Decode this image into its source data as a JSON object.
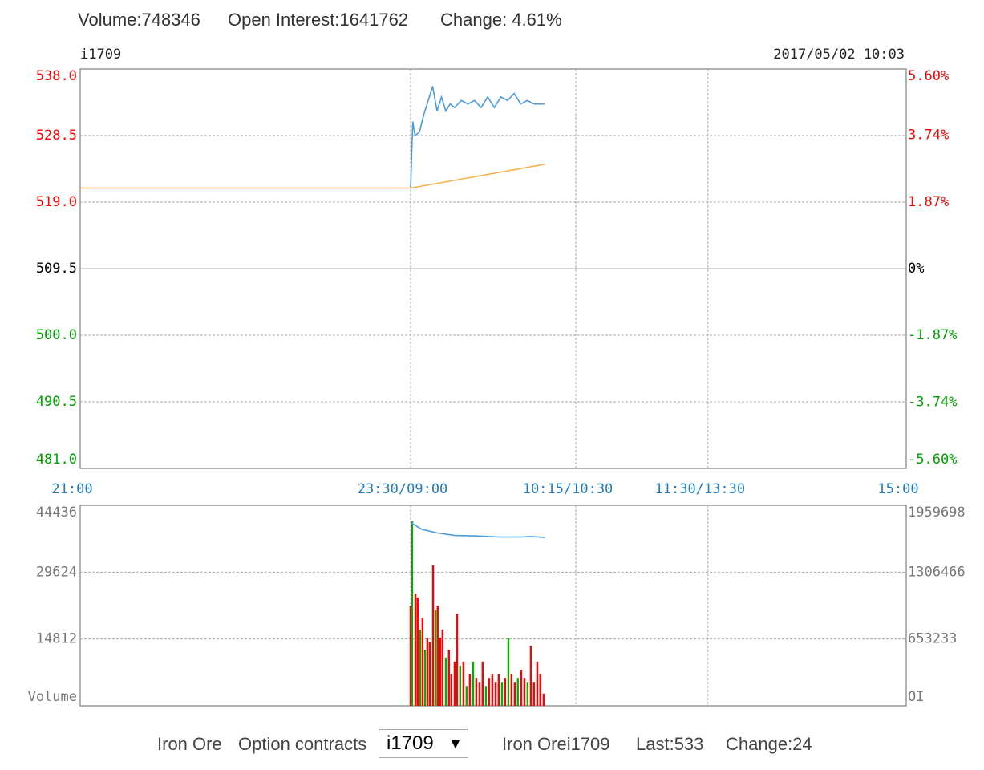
{
  "header": {
    "volume": "Volume:748346",
    "open_interest": "Open Interest:1641762",
    "change": "Change: 4.61%"
  },
  "chart_data": [
    {
      "type": "line",
      "symbol": "i1709",
      "timestamp": "2017/05/02 10:03",
      "xlim": [
        0,
        375
      ],
      "xticks": [
        {
          "value": 0,
          "label": "21:00"
        },
        {
          "value": 150,
          "label": "23:30/09:00"
        },
        {
          "value": 225,
          "label": "10:15/10:30"
        },
        {
          "value": 285,
          "label": "11:30/13:30"
        },
        {
          "value": 375,
          "label": "15:00"
        }
      ],
      "ylim": [
        481.0,
        538.0
      ],
      "yticks": [
        {
          "value": 538.0,
          "label": "538.0"
        },
        528.5,
        {
          "value": 519.0,
          "label": "519.0"
        },
        509.5,
        {
          "value": 500.0,
          "label": "500.0"
        },
        490.5,
        {
          "value": 481.0,
          "label": "481.0"
        }
      ],
      "y2lim": [
        -5.6,
        5.6
      ],
      "y2ticks": [
        {
          "value": 5.6,
          "label": "5.60%"
        },
        {
          "value": 3.74,
          "label": "3.74%"
        },
        {
          "value": 1.87,
          "label": "1.87%"
        },
        {
          "value": 0,
          "label": "0%"
        },
        {
          "value": -1.87,
          "label": "-1.87%"
        },
        {
          "value": -3.74,
          "label": "-3.74%"
        },
        {
          "value": -5.6,
          "label": "-5.60%"
        }
      ],
      "up_color": "#ff0000",
      "down_color": "#00a000",
      "grid": true,
      "series": [
        {
          "color": "#4a9be0",
          "x": [
            150,
            151,
            152,
            154,
            156,
            158,
            160,
            162,
            164,
            166,
            168,
            170,
            173,
            176,
            179,
            182,
            185,
            188,
            191,
            194,
            197,
            200,
            203,
            206,
            209,
            211
          ],
          "values": [
            521.0,
            530.5,
            528.5,
            529.0,
            531.5,
            533.5,
            535.5,
            532.0,
            534.0,
            532.0,
            533.0,
            532.5,
            533.5,
            533.0,
            533.5,
            532.5,
            534.0,
            532.5,
            534.0,
            533.5,
            534.5,
            533.0,
            533.5,
            533.0,
            533.0,
            533.0
          ]
        },
        {
          "color": "#f5b24a",
          "x": [
            0,
            150,
            211
          ],
          "values": [
            521.0,
            521.0,
            524.4
          ]
        }
      ]
    },
    {
      "type": "bar",
      "xlim": [
        0,
        375
      ],
      "xticks": [
        {
          "value": 0,
          "label": "21:00"
        },
        {
          "value": 150,
          "label": "23:30/09:00"
        },
        {
          "value": 225,
          "label": "10:15/10:30"
        },
        {
          "value": 285,
          "label": "11:30/13:30"
        },
        {
          "value": 375,
          "label": "15:00"
        }
      ],
      "ylim": [
        0,
        44436
      ],
      "yticks": [
        {
          "value": 0,
          "label": "Volume"
        },
        14812,
        29624,
        44436
      ],
      "y2lim": [
        0,
        1959698
      ],
      "y2ticks": [
        {
          "value": 0,
          "label": "OI"
        },
        653233,
        1306466,
        1959698
      ],
      "grid": true,
      "bars": {
        "x": [
          150.0,
          150.7,
          152.2,
          153.2,
          154.3,
          155.4,
          156.5,
          157.6,
          158.7,
          160.2,
          161.3,
          162.3,
          163.4,
          164.5,
          166.0,
          167.4,
          168.5,
          170.0,
          171.1,
          172.5,
          174.0,
          175.4,
          176.9,
          178.4,
          179.8,
          181.3,
          182.7,
          184.2,
          185.6,
          187.1,
          188.6,
          190.0,
          191.5,
          192.9,
          194.4,
          195.8,
          197.3,
          198.7,
          200.2,
          201.7,
          203.1,
          204.6,
          206.0,
          207.5,
          208.9,
          210.4
        ],
        "values": [
          22200,
          40900,
          24900,
          24000,
          16900,
          19500,
          12400,
          15100,
          14200,
          31100,
          21300,
          22200,
          15100,
          16900,
          10700,
          12400,
          7100,
          9800,
          20400,
          8900,
          9800,
          4400,
          7100,
          9800,
          6200,
          5300,
          9800,
          4400,
          6200,
          7100,
          5300,
          7100,
          5300,
          6200,
          15100,
          7100,
          5300,
          6200,
          8000,
          6200,
          5300,
          13300,
          5300,
          9800,
          7100,
          2700
        ],
        "colors": [
          "#ff0000",
          "#00b000",
          "#ff0000",
          "#ff0000",
          "#00b000",
          "#ff0000",
          "#00b000",
          "#ff0000",
          "#ff0000",
          "#ff0000",
          "#00b000",
          "#ff0000",
          "#ff0000",
          "#ff0000",
          "#00b000",
          "#ff0000",
          "#ff0000",
          "#ff0000",
          "#ff0000",
          "#00b000",
          "#ff0000",
          "#00b000",
          "#ff0000",
          "#00b000",
          "#ff0000",
          "#ff0000",
          "#ff0000",
          "#00b000",
          "#ff0000",
          "#ff0000",
          "#ff0000",
          "#ff0000",
          "#00b000",
          "#ff0000",
          "#00b000",
          "#ff0000",
          "#ff0000",
          "#00b000",
          "#ff0000",
          "#ff0000",
          "#00b000",
          "#ff0000",
          "#ff0000",
          "#ff0000",
          "#ff0000",
          "#ff0000"
        ]
      },
      "series": [
        {
          "axis": "y2",
          "color": "#4a9be0",
          "x": [
            150,
            151,
            155,
            162,
            170,
            180,
            190,
            200,
            205,
            211
          ],
          "values": [
            1795000,
            1780000,
            1725000,
            1690000,
            1665000,
            1660000,
            1650000,
            1650000,
            1655000,
            1645000
          ]
        }
      ]
    }
  ],
  "footer": {
    "product": "Iron Ore",
    "option_label": "Option contracts",
    "selected_contract": "i1709",
    "quote_name": "Iron Orei1709",
    "last": "Last:533",
    "change": "Change:24"
  }
}
